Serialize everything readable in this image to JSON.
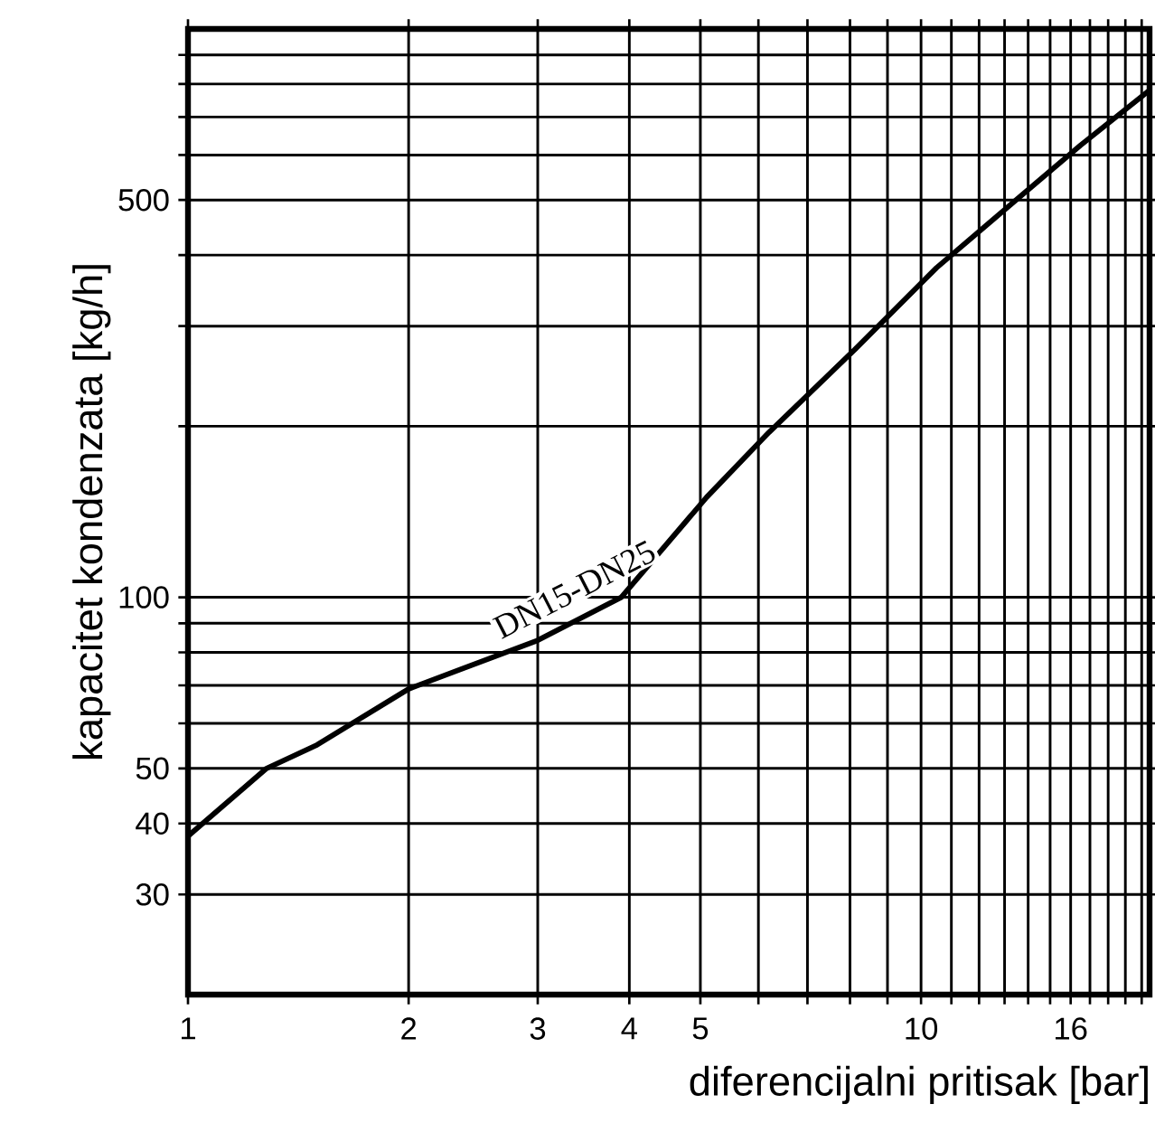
{
  "chart_data": {
    "type": "line",
    "xlabel": "diferencijalni pritisak [bar]",
    "ylabel": "kapacitet kondenzata [kg/h]",
    "log": "xy",
    "grid": true,
    "xlim": [
      1,
      20.5
    ],
    "ylim": [
      20,
      1000
    ],
    "xticks": [
      1,
      2,
      3,
      4,
      5,
      {
        "value": 6,
        "label": null
      },
      {
        "value": 7,
        "label": null
      },
      {
        "value": 8,
        "label": null
      },
      {
        "value": 9,
        "label": null
      },
      10,
      {
        "value": 11,
        "label": null
      },
      {
        "value": 12,
        "label": null
      },
      {
        "value": 13,
        "label": null
      },
      {
        "value": 14,
        "label": null
      },
      {
        "value": 15,
        "label": null
      },
      16,
      {
        "value": 17,
        "label": null
      },
      {
        "value": 18,
        "label": null
      },
      {
        "value": 19,
        "label": null
      },
      {
        "value": 20,
        "label": null
      }
    ],
    "yticks": [
      30,
      40,
      50,
      {
        "value": 60,
        "label": null
      },
      {
        "value": 70,
        "label": null
      },
      {
        "value": 80,
        "label": null
      },
      {
        "value": 90,
        "label": null
      },
      100,
      {
        "value": 200,
        "label": null
      },
      {
        "value": 300,
        "label": null
      },
      {
        "value": 400,
        "label": null
      },
      500,
      {
        "value": 600,
        "label": null
      },
      {
        "value": 700,
        "label": null
      },
      {
        "value": 800,
        "label": null
      },
      {
        "value": 900,
        "label": null
      }
    ],
    "series": [
      {
        "name": "DN15-DN25",
        "color": "#000000",
        "x": [
          1,
          1.28,
          1.5,
          2,
          3,
          3.9,
          5.1,
          6.2,
          8.15,
          10.5,
          13.6,
          16.5,
          20.5
        ],
        "values": [
          38,
          50,
          55,
          69,
          84,
          100,
          150,
          195,
          274,
          380,
          505,
          624,
          780
        ]
      }
    ]
  }
}
